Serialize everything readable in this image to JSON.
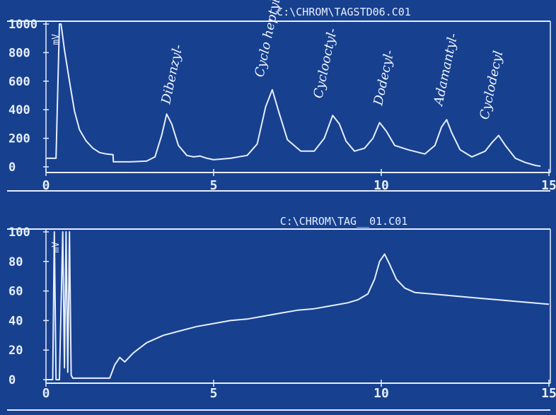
{
  "colors": {
    "background": "#17408f",
    "trace": "#e6eeff"
  },
  "chart_data": [
    {
      "type": "line",
      "title": "C:\\CHROM\\TAGSTD06.C01",
      "ylabel": "mV",
      "xlim": [
        0,
        15
      ],
      "ylim": [
        0,
        1000
      ],
      "x_ticks": [
        "0",
        "5",
        "10",
        "15"
      ],
      "y_ticks": [
        "0",
        "200",
        "400",
        "600",
        "800",
        "1000"
      ],
      "series": [
        {
          "x": [
            0,
            0.3,
            0.4,
            0.45,
            0.55,
            0.7,
            0.85,
            1.0,
            1.2,
            1.4,
            1.6,
            1.8,
            2.0,
            2.01,
            2.5,
            3.0,
            3.25,
            3.45,
            3.6,
            3.75,
            3.95,
            4.2,
            4.4,
            4.6,
            4.8,
            5.0,
            5.5,
            6.0,
            6.3,
            6.55,
            6.75,
            6.95,
            7.2,
            7.6,
            8.0,
            8.3,
            8.55,
            8.75,
            8.95,
            9.2,
            9.5,
            9.75,
            9.95,
            10.15,
            10.4,
            10.8,
            11.3,
            11.6,
            11.8,
            11.95,
            12.1,
            12.35,
            12.7,
            13.1,
            13.3,
            13.5,
            13.7,
            14.0,
            14.3,
            14.6,
            14.75
          ],
          "y": [
            60,
            60,
            1000,
            1000,
            820,
            600,
            390,
            260,
            180,
            130,
            100,
            90,
            85,
            35,
            35,
            40,
            70,
            220,
            370,
            300,
            150,
            80,
            70,
            75,
            60,
            50,
            60,
            80,
            160,
            420,
            540,
            380,
            190,
            110,
            110,
            200,
            360,
            300,
            180,
            110,
            130,
            200,
            310,
            250,
            150,
            120,
            90,
            150,
            280,
            330,
            240,
            120,
            70,
            110,
            170,
            220,
            150,
            60,
            30,
            10,
            5
          ]
        }
      ],
      "annotations": [
        "Dibenzyl-",
        "Cyclo heptyl-",
        "Cyclooctyl-",
        "Dodecyl-",
        "Adamantyl-",
        "Cyclodecyl"
      ]
    },
    {
      "type": "line",
      "title": "C:\\CHROM\\TAG__01.C01",
      "ylabel": "mV",
      "xlim": [
        0,
        15
      ],
      "ylim": [
        0,
        100
      ],
      "x_ticks": [
        "0",
        "5",
        "10",
        "15"
      ],
      "y_ticks": [
        "0",
        "20",
        "40",
        "60",
        "80",
        "100"
      ],
      "series": [
        {
          "x": [
            0,
            0.2,
            0.25,
            0.3,
            0.4,
            0.5,
            0.55,
            0.6,
            0.65,
            0.7,
            0.75,
            0.8,
            1.2,
            1.9,
            2.05,
            2.2,
            2.35,
            2.6,
            3.0,
            3.5,
            4.0,
            4.5,
            5.0,
            5.5,
            6.0,
            6.5,
            7.0,
            7.5,
            8.0,
            8.5,
            9.0,
            9.3,
            9.6,
            9.8,
            9.95,
            10.1,
            10.25,
            10.45,
            10.7,
            11.0,
            11.5,
            12.0,
            12.5,
            13.0,
            13.5,
            14.0,
            14.5,
            15.0
          ],
          "y": [
            0,
            0,
            100,
            0,
            0,
            100,
            8,
            100,
            5,
            100,
            3,
            1,
            1,
            1,
            10,
            15,
            12,
            18,
            25,
            30,
            33,
            36,
            38,
            40,
            41,
            43,
            45,
            47,
            48,
            50,
            52,
            54,
            58,
            68,
            80,
            85,
            78,
            68,
            62,
            59,
            58,
            57,
            56,
            55,
            54,
            53,
            52,
            51
          ]
        }
      ]
    }
  ]
}
